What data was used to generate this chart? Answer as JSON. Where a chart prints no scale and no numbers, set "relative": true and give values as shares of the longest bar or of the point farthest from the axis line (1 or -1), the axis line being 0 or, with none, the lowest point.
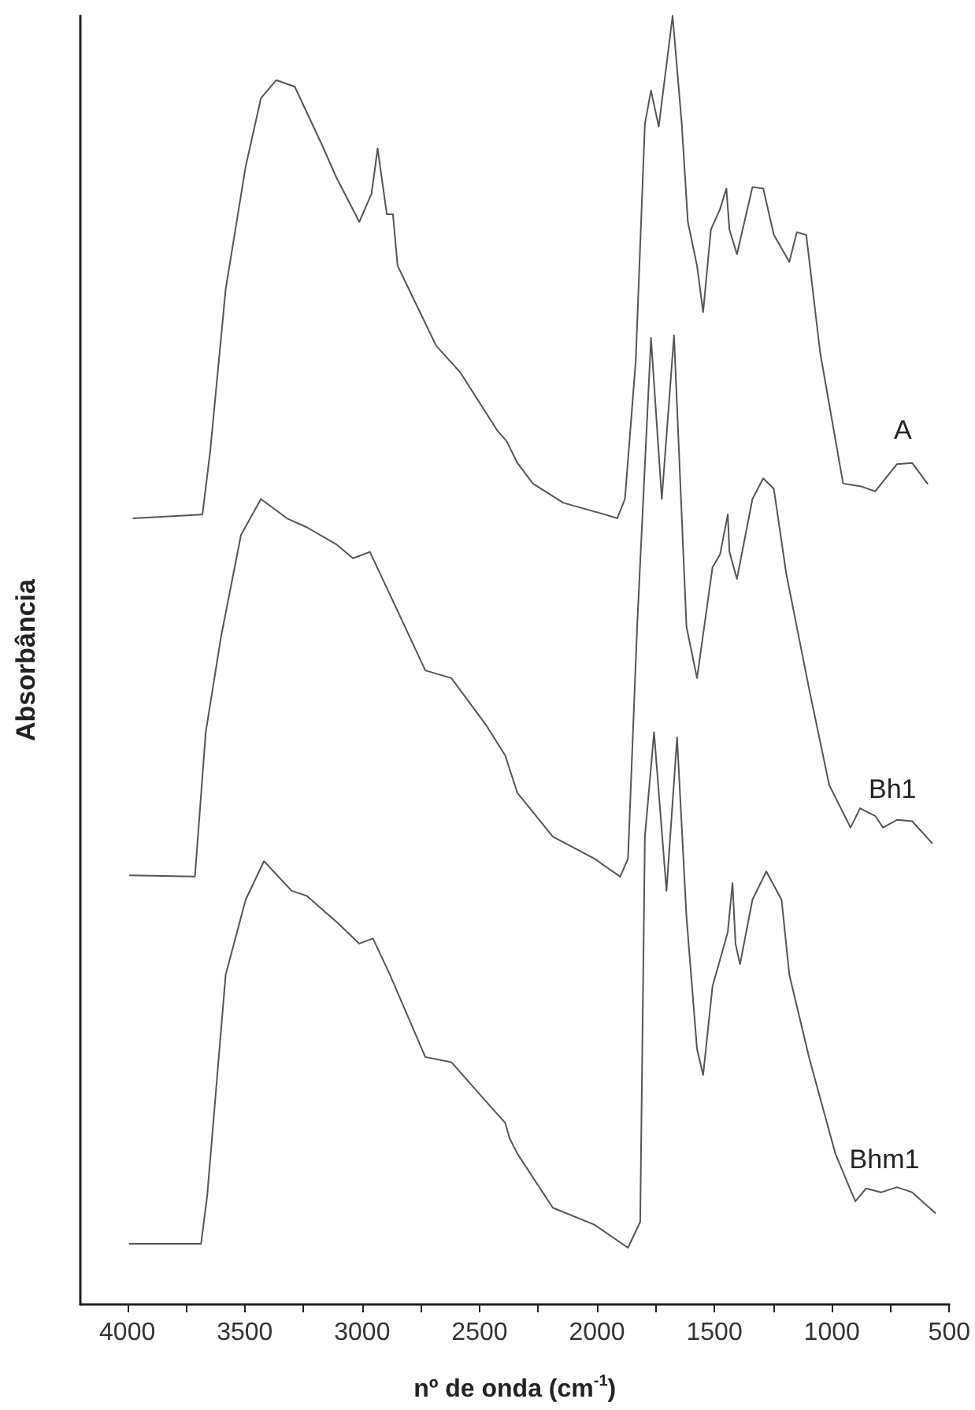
{
  "chart_data": {
    "type": "line",
    "xlabel": "nº de onda (cm$^{-1}$)",
    "ylabel": "Absorbância",
    "relative": true,
    "marker": "none",
    "line_style": "solid",
    "xlim": [
      4200,
      500
    ],
    "xticks": [
      4000,
      {
        "value": 3750,
        "label": null
      },
      3500,
      {
        "value": 3250,
        "label": null
      },
      3000,
      {
        "value": 2750,
        "label": null
      },
      2500,
      {
        "value": 2250,
        "label": null
      },
      2000,
      {
        "value": 1750,
        "label": null
      },
      1500,
      {
        "value": 1250,
        "label": null
      },
      1000,
      {
        "value": 750,
        "label": null
      },
      500
    ],
    "series": [
      {
        "name": "A",
        "color": "#555555",
        "x": [
          3974,
          3680,
          3647,
          3581,
          3496,
          3431,
          3366,
          3287,
          3169,
          3111,
          3012,
          2960,
          2934,
          2895,
          2869,
          2849,
          2685,
          2581,
          2424,
          2385,
          2339,
          2273,
          2143,
          1966,
          1914,
          1881,
          1835,
          1796,
          1770,
          1737,
          1678,
          1639,
          1613,
          1574,
          1548,
          1515,
          1476,
          1449,
          1436,
          1404,
          1338,
          1292,
          1247,
          1181,
          1149,
          1109,
          1050,
          952,
          880,
          815,
          723,
          658,
          593
        ],
        "values": [
          0.61,
          0.613,
          0.662,
          0.788,
          0.883,
          0.936,
          0.95,
          0.945,
          0.899,
          0.875,
          0.84,
          0.862,
          0.897,
          0.846,
          0.846,
          0.806,
          0.744,
          0.723,
          0.678,
          0.67,
          0.653,
          0.637,
          0.622,
          0.613,
          0.61,
          0.625,
          0.732,
          0.916,
          0.942,
          0.914,
          1.0,
          0.916,
          0.84,
          0.806,
          0.77,
          0.834,
          0.85,
          0.866,
          0.834,
          0.815,
          0.867,
          0.866,
          0.83,
          0.809,
          0.832,
          0.83,
          0.739,
          0.637,
          0.635,
          0.631,
          0.652,
          0.653,
          0.637
        ]
      },
      {
        "name": "Bh1",
        "color": "#555555",
        "x": [
          3990,
          3712,
          3666,
          3601,
          3516,
          3431,
          3320,
          3235,
          3111,
          3039,
          2967,
          2882,
          2731,
          2620,
          2470,
          2391,
          2339,
          2188,
          2012,
          1901,
          1868,
          1829,
          1770,
          1724,
          1672,
          1619,
          1574,
          1508,
          1476,
          1443,
          1436,
          1404,
          1338,
          1292,
          1247,
          1194,
          1096,
          1011,
          920,
          880,
          815,
          782,
          723,
          658,
          573
        ],
        "values": [
          0.333,
          0.332,
          0.444,
          0.518,
          0.597,
          0.625,
          0.61,
          0.603,
          0.59,
          0.579,
          0.584,
          0.551,
          0.492,
          0.486,
          0.449,
          0.426,
          0.397,
          0.363,
          0.346,
          0.332,
          0.346,
          0.526,
          0.75,
          0.625,
          0.752,
          0.526,
          0.486,
          0.572,
          0.582,
          0.613,
          0.584,
          0.563,
          0.625,
          0.641,
          0.633,
          0.567,
          0.477,
          0.403,
          0.37,
          0.385,
          0.379,
          0.37,
          0.376,
          0.375,
          0.358
        ]
      },
      {
        "name": "Bhm1",
        "color": "#555555",
        "x": [
          3990,
          3686,
          3660,
          3581,
          3496,
          3418,
          3300,
          3235,
          3104,
          3012,
          2954,
          2882,
          2731,
          2620,
          2470,
          2391,
          2372,
          2339,
          2188,
          2012,
          1868,
          1816,
          1796,
          1757,
          1704,
          1659,
          1619,
          1574,
          1548,
          1508,
          1443,
          1423,
          1410,
          1391,
          1338,
          1279,
          1214,
          1181,
          1096,
          985,
          900,
          854,
          789,
          723,
          658,
          560
        ],
        "values": [
          0.047,
          0.047,
          0.084,
          0.256,
          0.314,
          0.344,
          0.321,
          0.317,
          0.296,
          0.28,
          0.284,
          0.256,
          0.192,
          0.188,
          0.157,
          0.141,
          0.129,
          0.117,
          0.075,
          0.062,
          0.044,
          0.064,
          0.363,
          0.444,
          0.321,
          0.44,
          0.301,
          0.198,
          0.178,
          0.247,
          0.289,
          0.327,
          0.28,
          0.264,
          0.314,
          0.336,
          0.314,
          0.256,
          0.191,
          0.117,
          0.08,
          0.09,
          0.087,
          0.091,
          0.087,
          0.071
        ]
      }
    ]
  }
}
